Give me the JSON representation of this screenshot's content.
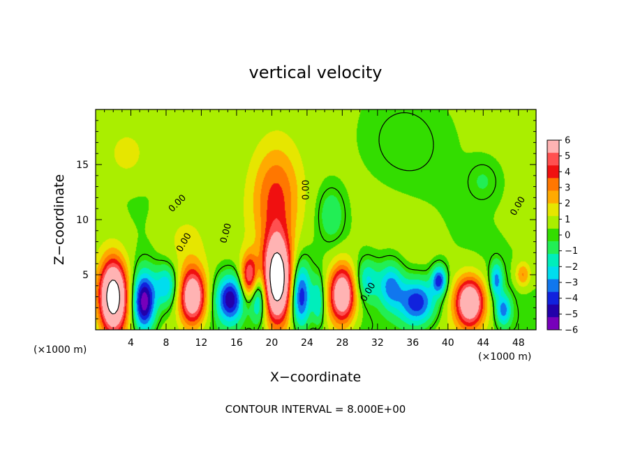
{
  "chart_data": {
    "type": "heatmap",
    "title": "vertical velocity",
    "xlabel": "X−coordinate",
    "ylabel": "Z−coordinate",
    "x_unit_left": "(×1000 m)",
    "x_unit_right": "(×1000 m)",
    "footer": "CONTOUR INTERVAL = 8.000E+00",
    "xlim": [
      0,
      50
    ],
    "ylim": [
      0,
      20
    ],
    "x_ticks": [
      4,
      8,
      12,
      16,
      20,
      24,
      28,
      32,
      36,
      40,
      44,
      48
    ],
    "x_tick_labels": [
      "4",
      "8",
      "12",
      "16",
      "20",
      "24",
      "28",
      "32",
      "36",
      "40",
      "44",
      "48"
    ],
    "y_ticks": [
      5,
      10,
      15
    ],
    "y_tick_labels": [
      "5",
      "10",
      "15"
    ],
    "grid": false,
    "legend": "colorbar-right",
    "colorbar": {
      "labels": [
        "6",
        "5",
        "4",
        "3",
        "2",
        "1",
        "0",
        "−1",
        "−2",
        "−3",
        "−4",
        "−5",
        "−6"
      ],
      "colors": [
        "#ffb3b3",
        "#ff5050",
        "#f01010",
        "#ff7700",
        "#ffaa00",
        "#e6e600",
        "#aaee00",
        "#33dd00",
        "#22ee55",
        "#00eebb",
        "#00ddee",
        "#1177ee",
        "#1122dd",
        "#2200aa",
        "#7700bb"
      ]
    },
    "contour_label": "0.00",
    "background_value": 0.5,
    "features": [
      {
        "x": 2,
        "y": 3,
        "sx": 1.1,
        "sy": 2.3,
        "amp": 9
      },
      {
        "x": 5.5,
        "y": 2.5,
        "sx": 0.9,
        "sy": 1.9,
        "amp": -6.5
      },
      {
        "x": 8,
        "y": 4,
        "sx": 0.9,
        "sy": 1.3,
        "amp": -3
      },
      {
        "x": 11,
        "y": 3,
        "sx": 1.1,
        "sy": 1.9,
        "amp": 7
      },
      {
        "x": 15.3,
        "y": 2.8,
        "sx": 1.1,
        "sy": 1.5,
        "amp": -5.5
      },
      {
        "x": 17.5,
        "y": 4.8,
        "sx": 0.7,
        "sy": 1.4,
        "amp": 5
      },
      {
        "x": 18.5,
        "y": 3,
        "sx": 0.7,
        "sy": 1.7,
        "amp": -4
      },
      {
        "x": 20.6,
        "y": 4.6,
        "sx": 1.1,
        "sy": 2.6,
        "amp": 9.5
      },
      {
        "x": 20.5,
        "y": 12,
        "sx": 2,
        "sy": 3.5,
        "amp": 3.4
      },
      {
        "x": 23.3,
        "y": 3,
        "sx": 0.8,
        "sy": 2.1,
        "amp": -5
      },
      {
        "x": 25.3,
        "y": 2.5,
        "sx": 0.5,
        "sy": 1.6,
        "amp": -2.5
      },
      {
        "x": 28,
        "y": 3.2,
        "sx": 1.1,
        "sy": 1.9,
        "amp": 7
      },
      {
        "x": 30.8,
        "y": 4.5,
        "sx": 0.9,
        "sy": 1.3,
        "amp": -2.5
      },
      {
        "x": 26.8,
        "y": 10.5,
        "sx": 1,
        "sy": 1.6,
        "amp": -1.6
      },
      {
        "x": 33.5,
        "y": 4,
        "sx": 1,
        "sy": 1.5,
        "amp": -3.5
      },
      {
        "x": 36.5,
        "y": 2.5,
        "sx": 1.5,
        "sy": 1.5,
        "amp": -5
      },
      {
        "x": 39,
        "y": 4.5,
        "sx": 0.6,
        "sy": 0.9,
        "amp": -4.5
      },
      {
        "x": 42.5,
        "y": 2.5,
        "sx": 1.2,
        "sy": 1.6,
        "amp": 7
      },
      {
        "x": 45.5,
        "y": 4.5,
        "sx": 0.5,
        "sy": 1.1,
        "amp": -3.5
      },
      {
        "x": 46.3,
        "y": 1.8,
        "sx": 0.6,
        "sy": 1,
        "amp": -3.5
      },
      {
        "x": 48.5,
        "y": 5,
        "sx": 0.6,
        "sy": 0.8,
        "amp": 2.5
      },
      {
        "x": 44,
        "y": 13.5,
        "sx": 1.3,
        "sy": 1.3,
        "amp": -1
      },
      {
        "x": 3.5,
        "y": 16,
        "sx": 1.5,
        "sy": 1.5,
        "amp": 1.2
      },
      {
        "x": 35,
        "y": 17,
        "sx": 3,
        "sy": 2.5,
        "amp": -0.8
      },
      {
        "x": 10,
        "y": 8,
        "sx": 2,
        "sy": 2,
        "amp": 1
      }
    ]
  }
}
